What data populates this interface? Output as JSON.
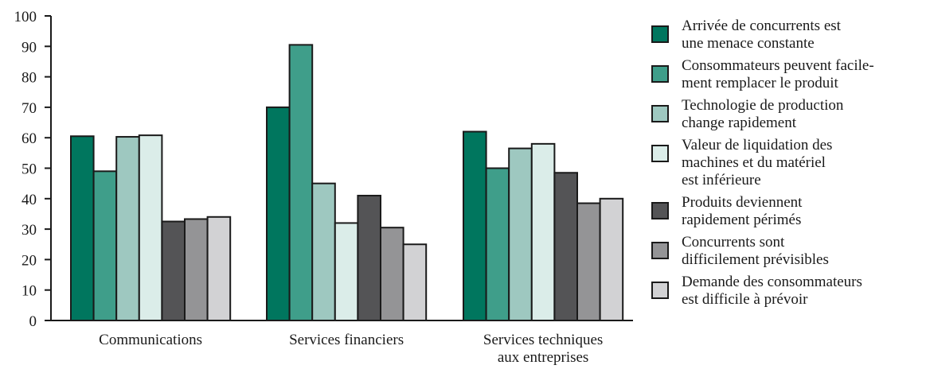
{
  "chart_data": {
    "type": "bar",
    "categories": [
      "Communications",
      "Services financiers",
      "Services techniques\naux entreprises"
    ],
    "series": [
      {
        "name": "Arrivée de concurrents est\nune menace constante",
        "color": "#00765e",
        "values": [
          60.5,
          70,
          62
        ]
      },
      {
        "name": "Consommateurs peuvent facile-\nment remplacer le produit",
        "color": "#3f9e8a",
        "values": [
          49,
          90.5,
          50
        ]
      },
      {
        "name": "Technologie de production\nchange rapidement",
        "color": "#9ec8c0",
        "values": [
          60.3,
          45,
          56.5
        ]
      },
      {
        "name": "Valeur de liquidation des\nmachines et du matériel\nest inférieure",
        "color": "#dbede9",
        "values": [
          60.8,
          32,
          58
        ]
      },
      {
        "name": "Produits deviennent\nrapidement périmés",
        "color": "#545456",
        "values": [
          32.5,
          41,
          48.5
        ]
      },
      {
        "name": "Concurrents sont\ndifficilement prévisibles",
        "color": "#949496",
        "values": [
          33.3,
          30.5,
          38.5
        ]
      },
      {
        "name": "Demande des consommateurs\nest difficile à prévoir",
        "color": "#d2d2d4",
        "values": [
          34,
          25,
          40
        ]
      }
    ],
    "yticks": [
      "0",
      "10",
      "20",
      "30",
      "40",
      "50",
      "60",
      "70",
      "80",
      "90",
      "100"
    ],
    "ylim": [
      0,
      100
    ],
    "legend_position": "right",
    "grid": false
  }
}
